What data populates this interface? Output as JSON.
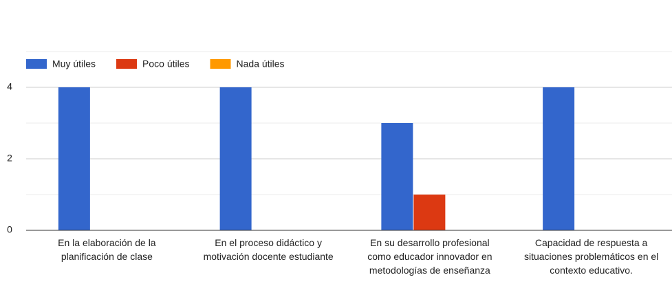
{
  "chart_data": {
    "type": "bar",
    "categories": [
      "En la elaboración de la planificación de clase",
      "En el proceso didáctico y motivación docente estudiante",
      "En su desarrollo profesional como educador innovador en metodologías de enseñanza",
      "Capacidad de respuesta a situaciones problemáticos en el contexto educativo."
    ],
    "series": [
      {
        "name": "Muy útiles",
        "color": "#3366cc",
        "values": [
          4,
          4,
          3,
          4
        ]
      },
      {
        "name": "Poco útiles",
        "color": "#dc3912",
        "values": [
          0,
          0,
          1,
          0
        ]
      },
      {
        "name": "Nada útiles",
        "color": "#ff9900",
        "values": [
          0,
          0,
          0,
          0
        ]
      }
    ],
    "ylim": [
      0,
      5
    ],
    "yticks": [
      0,
      2,
      4
    ],
    "minor_yticks": [
      1,
      3,
      5
    ],
    "grid": true,
    "legend": "top"
  }
}
